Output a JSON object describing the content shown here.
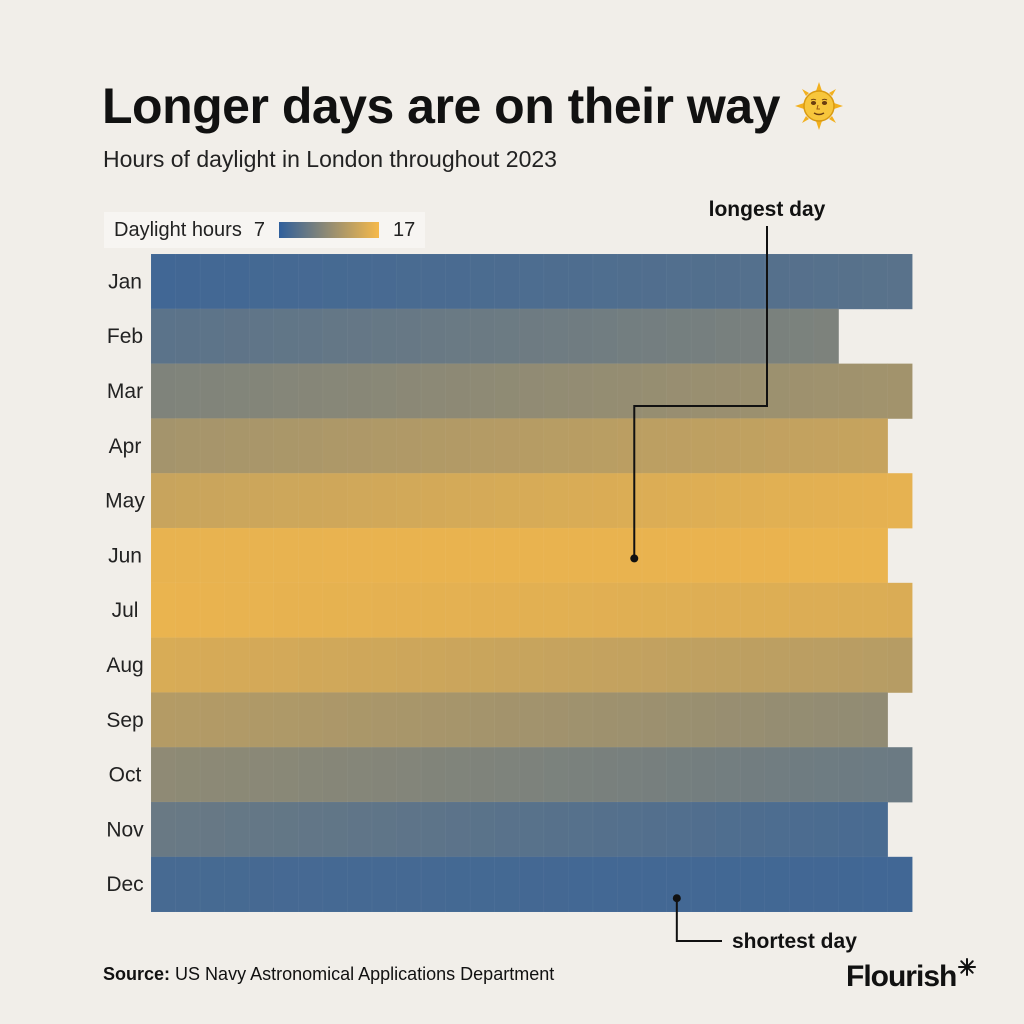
{
  "header": {
    "title": "Longer days are on their way",
    "subtitle": "Hours of daylight in London throughout 2023",
    "title_icon": "sun-with-face-icon"
  },
  "legend": {
    "label": "Daylight hours",
    "min": "7",
    "max": "17",
    "color_low": "#2f5f9c",
    "color_high": "#f6b94a"
  },
  "annotations": {
    "longest": "longest day",
    "shortest": "shortest day"
  },
  "source": {
    "label": "Source:",
    "text": "US Navy Astronomical Applications Department"
  },
  "brand": {
    "name": "Flourish"
  },
  "chart_data": {
    "type": "heatmap",
    "title": "Longer days are on their way",
    "subtitle": "Hours of daylight in London throughout 2023",
    "x": "day of month (1–31)",
    "y_categories": [
      "Jan",
      "Feb",
      "Mar",
      "Apr",
      "May",
      "Jun",
      "Jul",
      "Aug",
      "Sep",
      "Oct",
      "Nov",
      "Dec"
    ],
    "days_in_month": [
      31,
      28,
      31,
      30,
      31,
      30,
      31,
      31,
      30,
      31,
      30,
      31
    ],
    "value_unit": "daylight hours",
    "color_range": [
      7,
      17
    ],
    "colors": [
      "#2f5f9c",
      "#f6b94a"
    ],
    "monthly_start_end_hours": [
      [
        7.9,
        9.1
      ],
      [
        9.2,
        10.9
      ],
      [
        11.0,
        12.8
      ],
      [
        12.9,
        14.6
      ],
      [
        14.7,
        16.2
      ],
      [
        16.3,
        16.4
      ],
      [
        16.4,
        15.6
      ],
      [
        15.5,
        13.8
      ],
      [
        13.7,
        11.9
      ],
      [
        11.8,
        10.0
      ],
      [
        9.9,
        8.3
      ],
      [
        8.2,
        7.9
      ]
    ],
    "annotations": [
      {
        "text": "longest day",
        "month": "Jun",
        "day": 21,
        "value": 16.6
      },
      {
        "text": "shortest day",
        "month": "Dec",
        "day": 22,
        "value": 7.8
      }
    ]
  }
}
